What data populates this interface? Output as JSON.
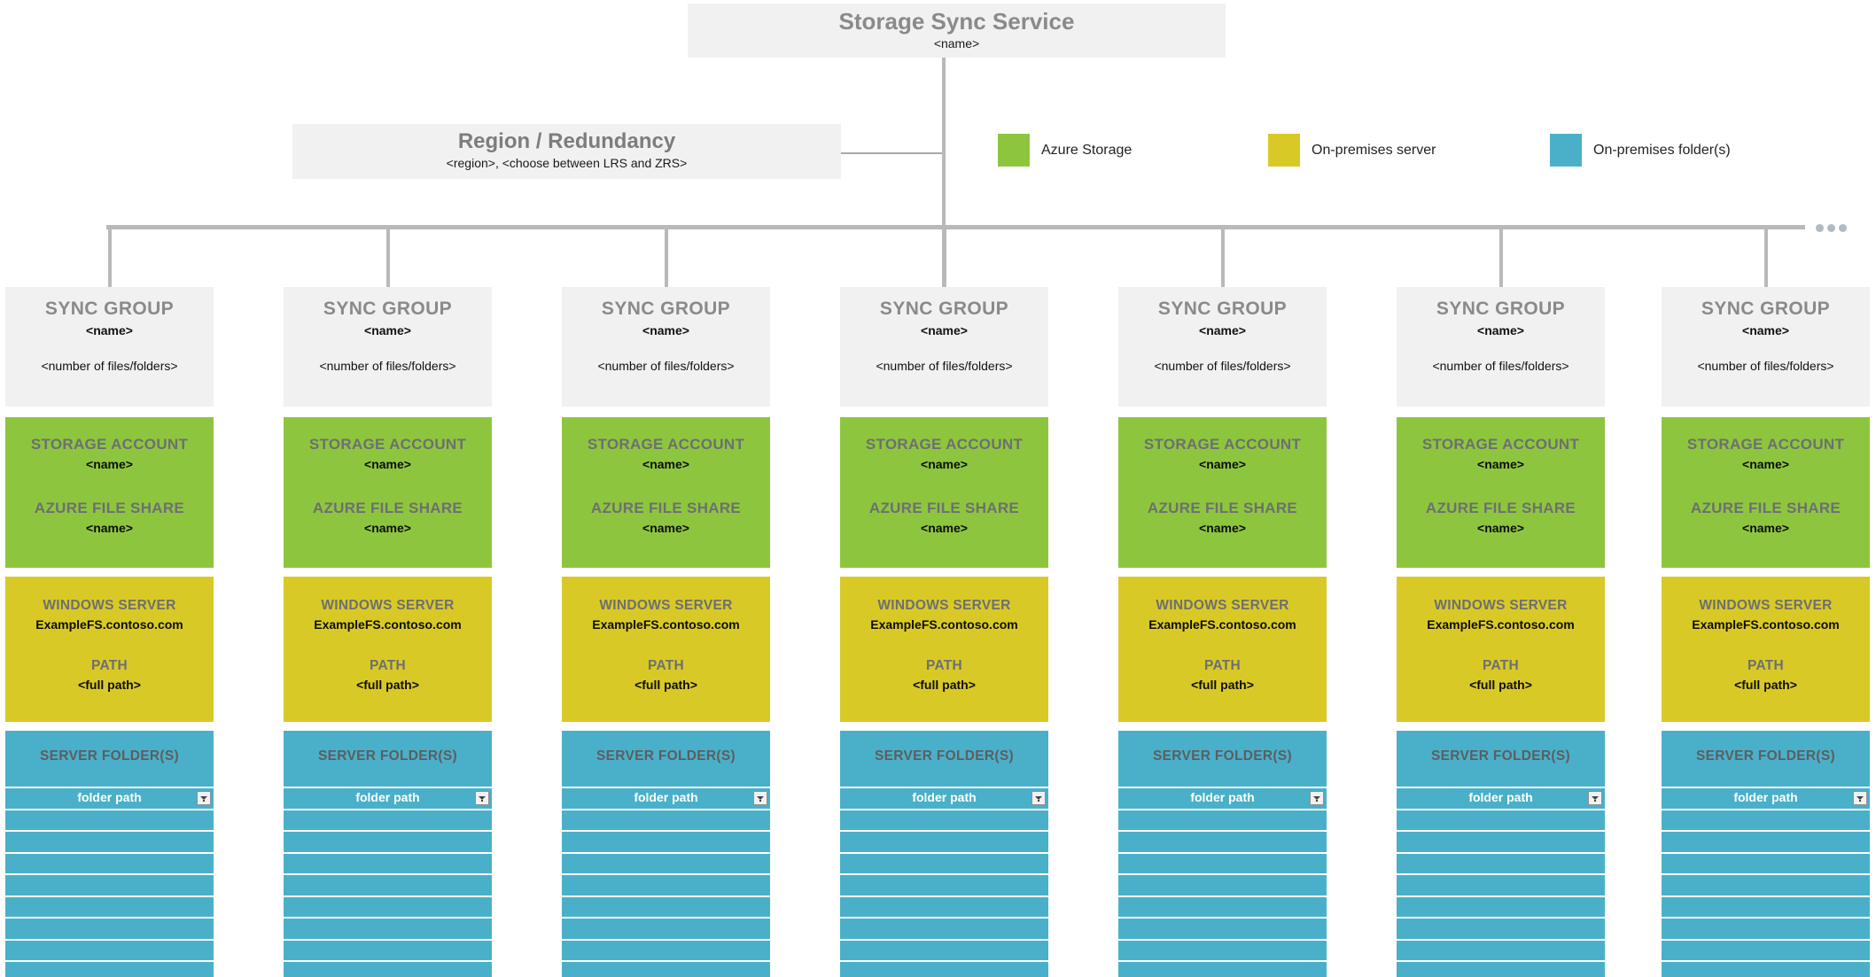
{
  "title_box": {
    "title": "Storage Sync Service",
    "subtitle": "<name>"
  },
  "region_box": {
    "title": "Region / Redundancy",
    "subtitle": "<region>, <choose between LRS and ZRS>"
  },
  "legend": {
    "items": [
      {
        "id": "azure-storage",
        "label": "Azure Storage",
        "color": "#8dc63e"
      },
      {
        "id": "on-premises-server",
        "label": "On-premises server",
        "color": "#d9c927"
      },
      {
        "id": "on-premises-folder",
        "label": "On-premises folder(s)",
        "color": "#4ab0c9"
      }
    ]
  },
  "icons": {
    "more_sync_groups": "ellipsis-icon",
    "folder_path_dropdown": "dropdown-arrow-icon"
  },
  "colors": {
    "azure_storage_green": "#8dc63e",
    "on_premises_server_yellow": "#d9c927",
    "on_premises_folder_teal": "#4ab0c9",
    "box_gray": "#f1f1f2",
    "connector_gray": "#b9b9b9"
  },
  "columns": [
    {
      "group_label": "SYNC GROUP",
      "group_name": "<name>",
      "group_count": "<number of files/folders>",
      "storage_account_label": "STORAGE ACCOUNT",
      "storage_account_name": "<name>",
      "file_share_label": "AZURE FILE SHARE",
      "file_share_name": "<name>",
      "server_label": "WINDOWS SERVER",
      "server_name": "ExampleFS.contoso.com",
      "path_label": "PATH",
      "path_value": "<full path>",
      "folders_label": "SERVER FOLDER(S)",
      "folder_path_label": "folder path",
      "empty_rows": 8
    },
    {
      "group_label": "SYNC GROUP",
      "group_name": "<name>",
      "group_count": "<number of files/folders>",
      "storage_account_label": "STORAGE ACCOUNT",
      "storage_account_name": "<name>",
      "file_share_label": "AZURE FILE SHARE",
      "file_share_name": "<name>",
      "server_label": "WINDOWS SERVER",
      "server_name": "ExampleFS.contoso.com",
      "path_label": "PATH",
      "path_value": "<full path>",
      "folders_label": "SERVER FOLDER(S)",
      "folder_path_label": "folder path",
      "empty_rows": 8
    },
    {
      "group_label": "SYNC GROUP",
      "group_name": "<name>",
      "group_count": "<number of files/folders>",
      "storage_account_label": "STORAGE ACCOUNT",
      "storage_account_name": "<name>",
      "file_share_label": "AZURE FILE SHARE",
      "file_share_name": "<name>",
      "server_label": "WINDOWS SERVER",
      "server_name": "ExampleFS.contoso.com",
      "path_label": "PATH",
      "path_value": "<full path>",
      "folders_label": "SERVER FOLDER(S)",
      "folder_path_label": "folder path",
      "empty_rows": 8
    },
    {
      "group_label": "SYNC GROUP",
      "group_name": "<name>",
      "group_count": "<number of files/folders>",
      "storage_account_label": "STORAGE ACCOUNT",
      "storage_account_name": "<name>",
      "file_share_label": "AZURE FILE SHARE",
      "file_share_name": "<name>",
      "server_label": "WINDOWS SERVER",
      "server_name": "ExampleFS.contoso.com",
      "path_label": "PATH",
      "path_value": "<full path>",
      "folders_label": "SERVER FOLDER(S)",
      "folder_path_label": "folder path",
      "empty_rows": 8
    },
    {
      "group_label": "SYNC GROUP",
      "group_name": "<name>",
      "group_count": "<number of files/folders>",
      "storage_account_label": "STORAGE ACCOUNT",
      "storage_account_name": "<name>",
      "file_share_label": "AZURE FILE SHARE",
      "file_share_name": "<name>",
      "server_label": "WINDOWS SERVER",
      "server_name": "ExampleFS.contoso.com",
      "path_label": "PATH",
      "path_value": "<full path>",
      "folders_label": "SERVER FOLDER(S)",
      "folder_path_label": "folder path",
      "empty_rows": 8
    },
    {
      "group_label": "SYNC GROUP",
      "group_name": "<name>",
      "group_count": "<number of files/folders>",
      "storage_account_label": "STORAGE ACCOUNT",
      "storage_account_name": "<name>",
      "file_share_label": "AZURE FILE SHARE",
      "file_share_name": "<name>",
      "server_label": "WINDOWS SERVER",
      "server_name": "ExampleFS.contoso.com",
      "path_label": "PATH",
      "path_value": "<full path>",
      "folders_label": "SERVER FOLDER(S)",
      "folder_path_label": "folder path",
      "empty_rows": 8
    },
    {
      "group_label": "SYNC GROUP",
      "group_name": "<name>",
      "group_count": "<number of files/folders>",
      "storage_account_label": "STORAGE ACCOUNT",
      "storage_account_name": "<name>",
      "file_share_label": "AZURE FILE SHARE",
      "file_share_name": "<name>",
      "server_label": "WINDOWS SERVER",
      "server_name": "ExampleFS.contoso.com",
      "path_label": "PATH",
      "path_value": "<full path>",
      "folders_label": "SERVER FOLDER(S)",
      "folder_path_label": "folder path",
      "empty_rows": 8
    }
  ]
}
